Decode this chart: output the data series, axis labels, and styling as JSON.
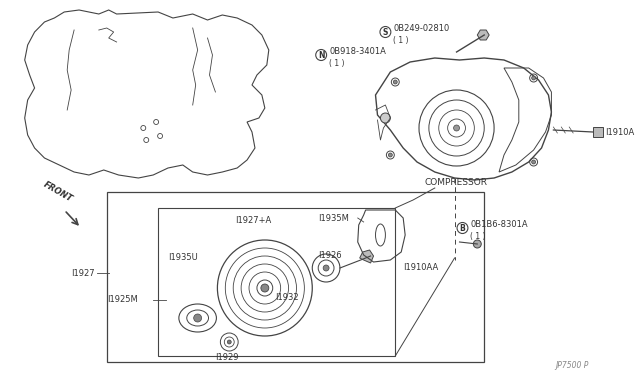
{
  "bg_color": "#ffffff",
  "line_color": "#444444",
  "text_color": "#333333",
  "fig_width": 6.4,
  "fig_height": 3.72,
  "part_number_bottom_right": "JP7500 P",
  "labels": {
    "compressor": "COMPRESSOR",
    "front": "FRONT",
    "part_08249": "0B249-02810",
    "part_08249_qty": "( 1 )",
    "part_08918": "0B918-3401A",
    "part_08918_qty": "( 1 )",
    "part_081b6": "0B1B6-8301A",
    "part_081b6_qty": "( 1 )",
    "part_11910a": "I1910A",
    "part_11910aa": "I1910AA",
    "part_11927": "I1927",
    "part_11927a": "I1927+A",
    "part_11925m": "I1925M",
    "part_11935m": "I1935M",
    "part_11935u": "I1935U",
    "part_11926": "I1926",
    "part_11932": "I1932",
    "part_11929": "I1929",
    "circle_s": "S",
    "circle_n": "N",
    "circle_b": "B"
  }
}
